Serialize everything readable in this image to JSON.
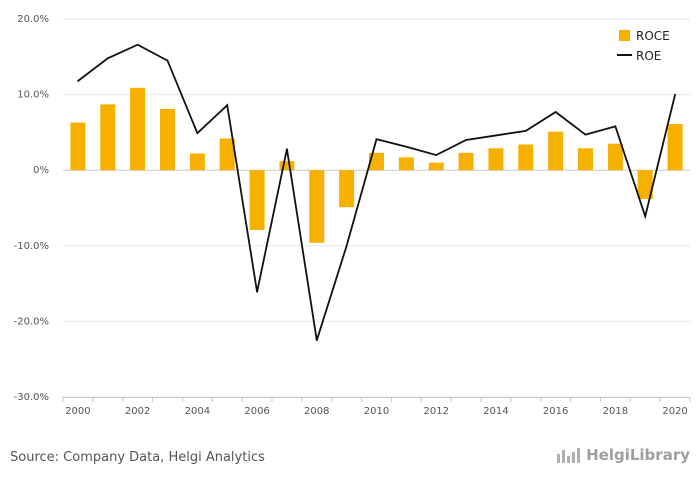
{
  "chart_data": {
    "type": "bar",
    "categories": [
      2000,
      2001,
      2002,
      2003,
      2004,
      2005,
      2006,
      2007,
      2008,
      2009,
      2010,
      2011,
      2012,
      2013,
      2014,
      2015,
      2016,
      2017,
      2018,
      2019,
      2020
    ],
    "xtick_labels": [
      "2000",
      "2002",
      "2004",
      "2006",
      "2008",
      "2010",
      "2012",
      "2014",
      "2016",
      "2018",
      "2020"
    ],
    "ylim": [
      -30,
      20
    ],
    "yticks": [
      20,
      10,
      0,
      -10,
      -20,
      -30
    ],
    "ytick_labels": [
      "20.0%",
      "10.0%",
      "0%",
      "-10.0%",
      "-20.0%",
      "-30.0%"
    ],
    "grid": true,
    "legend_position": "top-right",
    "series": [
      {
        "name": "ROCE",
        "type": "bar",
        "color": "#f5b000",
        "values": [
          6.3,
          8.7,
          10.9,
          8.1,
          2.2,
          4.2,
          -7.9,
          1.2,
          -9.6,
          -4.9,
          2.3,
          1.7,
          1.0,
          2.3,
          2.9,
          3.4,
          5.1,
          2.9,
          3.5,
          -3.8,
          6.1
        ]
      },
      {
        "name": "ROE",
        "type": "line",
        "color": "#111111",
        "values": [
          11.8,
          14.8,
          16.6,
          14.5,
          4.9,
          8.6,
          -16.1,
          2.8,
          -22.5,
          -10.0,
          4.1,
          3.1,
          2.0,
          4.0,
          4.6,
          5.2,
          7.7,
          4.7,
          5.8,
          -6.1,
          10.0
        ]
      }
    ]
  },
  "footer": {
    "source": "Source: Company Data, Helgi Analytics",
    "logo_text": "HelgiLibrary"
  }
}
